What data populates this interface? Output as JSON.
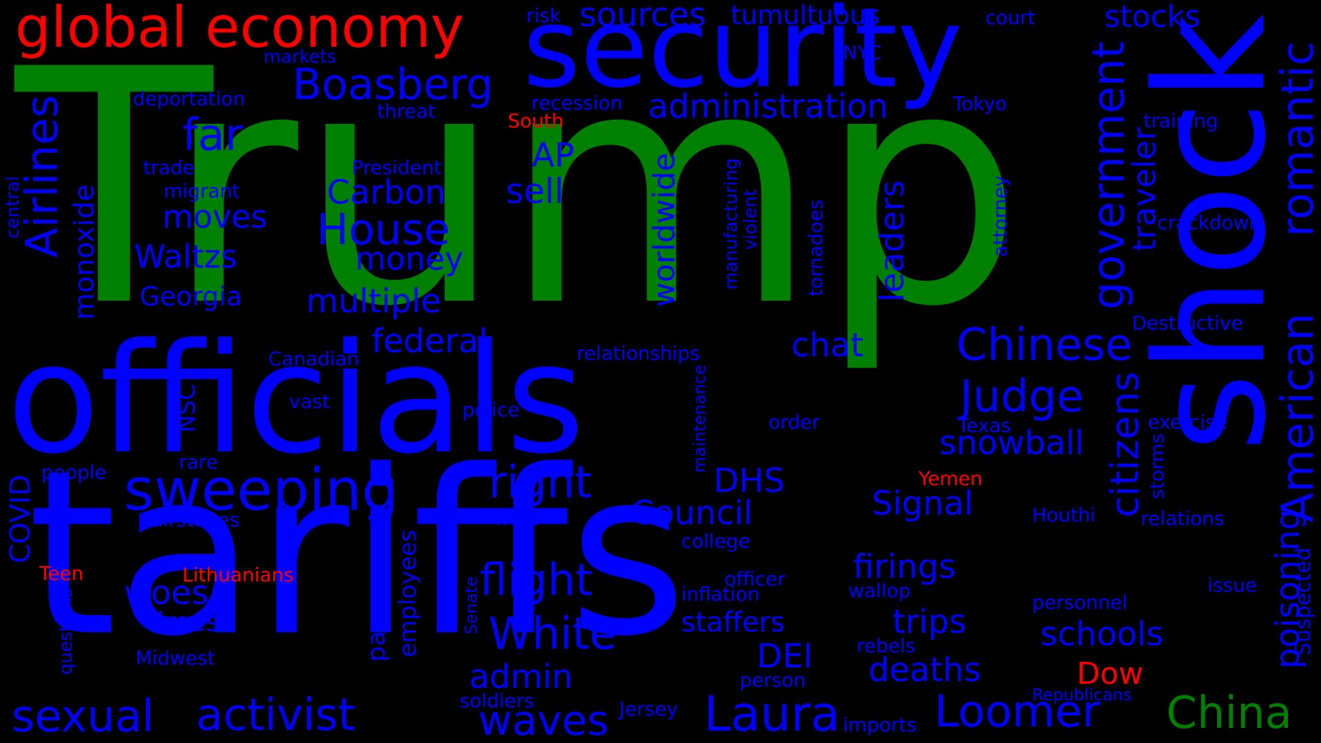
{
  "colors": {
    "background": "#000000",
    "blue": "#0000ff",
    "green": "#008000",
    "red": "#ff0000"
  },
  "words": [
    {
      "text": "Trump",
      "color": "green"
    },
    {
      "text": "tariffs",
      "color": "blue"
    },
    {
      "text": "officials",
      "color": "blue"
    },
    {
      "text": "security",
      "color": "blue"
    },
    {
      "text": "shock",
      "color": "blue"
    },
    {
      "text": "global economy",
      "color": "red"
    },
    {
      "text": "sweeping",
      "color": "blue"
    },
    {
      "text": "Boasberg",
      "color": "blue"
    },
    {
      "text": "administration",
      "color": "blue"
    },
    {
      "text": "sources",
      "color": "blue"
    },
    {
      "text": "tumultuous",
      "color": "blue"
    },
    {
      "text": "stocks",
      "color": "blue"
    },
    {
      "text": "court",
      "color": "blue"
    },
    {
      "text": "risk",
      "color": "blue"
    },
    {
      "text": "markets",
      "color": "blue"
    },
    {
      "text": "NYC",
      "color": "blue"
    },
    {
      "text": "deportation",
      "color": "blue"
    },
    {
      "text": "threat",
      "color": "blue"
    },
    {
      "text": "recession",
      "color": "blue"
    },
    {
      "text": "Tokyo",
      "color": "blue"
    },
    {
      "text": "South",
      "color": "red"
    },
    {
      "text": "training",
      "color": "blue"
    },
    {
      "text": "far",
      "color": "blue"
    },
    {
      "text": "AP",
      "color": "blue"
    },
    {
      "text": "trade",
      "color": "blue"
    },
    {
      "text": "President",
      "color": "blue"
    },
    {
      "text": "migrant",
      "color": "blue"
    },
    {
      "text": "Carbon",
      "color": "blue"
    },
    {
      "text": "sell",
      "color": "blue"
    },
    {
      "text": "moves",
      "color": "blue"
    },
    {
      "text": "House",
      "color": "blue"
    },
    {
      "text": "crackdown",
      "color": "blue"
    },
    {
      "text": "Waltzs",
      "color": "blue"
    },
    {
      "text": "money",
      "color": "blue"
    },
    {
      "text": "Georgia",
      "color": "blue"
    },
    {
      "text": "multiple",
      "color": "blue"
    },
    {
      "text": "Destructive",
      "color": "blue"
    },
    {
      "text": "federal",
      "color": "blue"
    },
    {
      "text": "chat",
      "color": "blue"
    },
    {
      "text": "Chinese",
      "color": "blue"
    },
    {
      "text": "Canadian",
      "color": "blue"
    },
    {
      "text": "relationships",
      "color": "blue"
    },
    {
      "text": "Judge",
      "color": "blue"
    },
    {
      "text": "vast",
      "color": "blue"
    },
    {
      "text": "police",
      "color": "blue"
    },
    {
      "text": "order",
      "color": "blue"
    },
    {
      "text": "Texas",
      "color": "blue"
    },
    {
      "text": "exercise",
      "color": "blue"
    },
    {
      "text": "snowball",
      "color": "blue"
    },
    {
      "text": "people",
      "color": "blue"
    },
    {
      "text": "rare",
      "color": "blue"
    },
    {
      "text": "right",
      "color": "blue"
    },
    {
      "text": "DHS",
      "color": "blue"
    },
    {
      "text": "Yemen",
      "color": "red"
    },
    {
      "text": "Council",
      "color": "blue"
    },
    {
      "text": "Signal",
      "color": "blue"
    },
    {
      "text": "Houthi",
      "color": "blue"
    },
    {
      "text": "relations",
      "color": "blue"
    },
    {
      "text": "airstrikes",
      "color": "blue"
    },
    {
      "text": "wars",
      "color": "blue"
    },
    {
      "text": "college",
      "color": "blue"
    },
    {
      "text": "Teen",
      "color": "red"
    },
    {
      "text": "Lithuanians",
      "color": "red"
    },
    {
      "text": "flight",
      "color": "blue"
    },
    {
      "text": "firings",
      "color": "blue"
    },
    {
      "text": "woes",
      "color": "blue"
    },
    {
      "text": "officer",
      "color": "blue"
    },
    {
      "text": "issue",
      "color": "blue"
    },
    {
      "text": "inflation",
      "color": "blue"
    },
    {
      "text": "wallop",
      "color": "blue"
    },
    {
      "text": "personnel",
      "color": "blue"
    },
    {
      "text": "times",
      "color": "blue"
    },
    {
      "text": "White",
      "color": "blue"
    },
    {
      "text": "staffers",
      "color": "blue"
    },
    {
      "text": "trips",
      "color": "blue"
    },
    {
      "text": "schools",
      "color": "blue"
    },
    {
      "text": "Midwest",
      "color": "blue"
    },
    {
      "text": "DEI",
      "color": "blue"
    },
    {
      "text": "rebels",
      "color": "blue"
    },
    {
      "text": "admin",
      "color": "blue"
    },
    {
      "text": "deaths",
      "color": "blue"
    },
    {
      "text": "Dow",
      "color": "red"
    },
    {
      "text": "person",
      "color": "blue"
    },
    {
      "text": "soldiers",
      "color": "blue"
    },
    {
      "text": "Republicans",
      "color": "blue"
    },
    {
      "text": "sexual",
      "color": "blue"
    },
    {
      "text": "activist",
      "color": "blue"
    },
    {
      "text": "waves",
      "color": "blue"
    },
    {
      "text": "Jersey",
      "color": "blue"
    },
    {
      "text": "Laura",
      "color": "blue"
    },
    {
      "text": "imports",
      "color": "blue"
    },
    {
      "text": "Loomer",
      "color": "blue"
    },
    {
      "text": "China",
      "color": "green"
    },
    {
      "text": "Airlines",
      "color": "blue"
    },
    {
      "text": "monoxide",
      "color": "blue"
    },
    {
      "text": "central",
      "color": "blue"
    },
    {
      "text": "COVID",
      "color": "blue"
    },
    {
      "text": "questions",
      "color": "blue"
    },
    {
      "text": "NSC",
      "color": "blue"
    },
    {
      "text": "passengers",
      "color": "blue"
    },
    {
      "text": "employees",
      "color": "blue"
    },
    {
      "text": "Senate",
      "color": "blue"
    },
    {
      "text": "worldwide",
      "color": "blue"
    },
    {
      "text": "manufacturing",
      "color": "blue"
    },
    {
      "text": "violent",
      "color": "blue"
    },
    {
      "text": "maintenance",
      "color": "blue"
    },
    {
      "text": "tornadoes",
      "color": "blue"
    },
    {
      "text": "attorney",
      "color": "blue"
    },
    {
      "text": "leaders",
      "color": "blue"
    },
    {
      "text": "government",
      "color": "blue"
    },
    {
      "text": "traveler",
      "color": "blue"
    },
    {
      "text": "citizens",
      "color": "blue"
    },
    {
      "text": "American",
      "color": "blue"
    },
    {
      "text": "romantic",
      "color": "blue"
    },
    {
      "text": "storms",
      "color": "blue"
    },
    {
      "text": "poisoning",
      "color": "blue"
    },
    {
      "text": "Suspected",
      "color": "blue"
    }
  ]
}
